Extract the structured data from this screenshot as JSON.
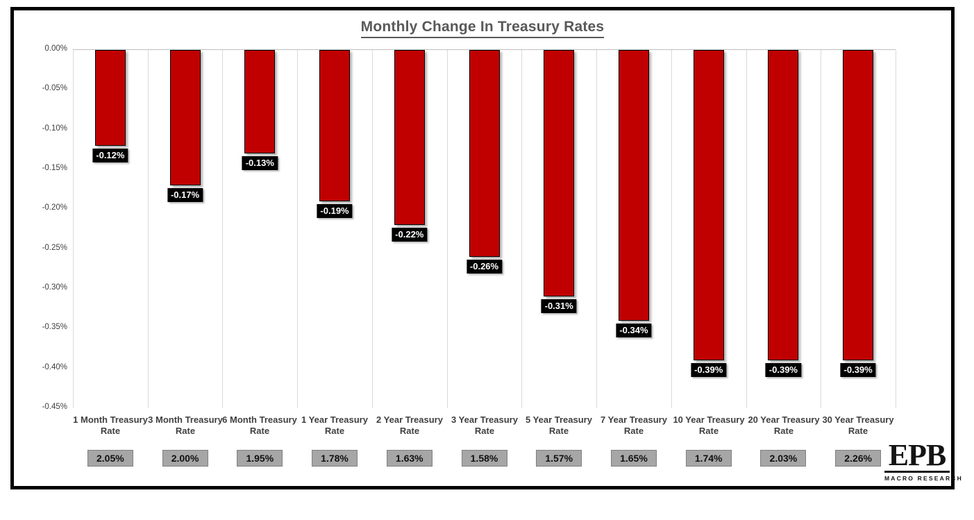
{
  "title": "Monthly Change In Treasury Rates",
  "logo": {
    "text": "EPB",
    "subtext": "MACRO RESEARCH"
  },
  "colors": {
    "bar": "#C00000",
    "bar_border": "#000000",
    "value_label_bg": "#000000",
    "value_label_text": "#FFFFFF",
    "rate_box_bg": "#A6A6A6",
    "rate_box_border": "#7F7F7F",
    "grid": "#D9D9D9",
    "axis_text": "#404040",
    "title_text": "#595959"
  },
  "chart_data": {
    "type": "bar",
    "title": "Monthly Change In Treasury Rates",
    "xlabel": "",
    "ylabel": "",
    "ylim": [
      -0.45,
      0
    ],
    "ytick_step": 0.05,
    "yticks": [
      "0.00%",
      "-0.05%",
      "-0.10%",
      "-0.15%",
      "-0.20%",
      "-0.25%",
      "-0.30%",
      "-0.35%",
      "-0.40%",
      "-0.45%"
    ],
    "grid": "vertical category separators, light gray",
    "legend": "none",
    "categories": [
      "1 Month Treasury Rate",
      "3 Month Treasury Rate",
      "6 Month Treasury Rate",
      "1 Year Treasury Rate",
      "2 Year Treasury Rate",
      "3 Year Treasury Rate",
      "5 Year Treasury Rate",
      "7 Year Treasury Rate",
      "10 Year Treasury Rate",
      "20 Year Treasury Rate",
      "30 Year Treasury Rate"
    ],
    "series": [
      {
        "name": "Monthly Change",
        "values": [
          -0.12,
          -0.17,
          -0.13,
          -0.19,
          -0.22,
          -0.26,
          -0.31,
          -0.34,
          -0.39,
          -0.39,
          -0.39
        ],
        "labels": [
          "-0.12%",
          "-0.17%",
          "-0.13%",
          "-0.19%",
          "-0.22%",
          "-0.26%",
          "-0.31%",
          "-0.34%",
          "-0.39%",
          "-0.39%",
          "-0.39%"
        ]
      }
    ],
    "current_rate_boxes": [
      "2.05%",
      "2.00%",
      "1.95%",
      "1.78%",
      "1.63%",
      "1.58%",
      "1.57%",
      "1.65%",
      "1.74%",
      "2.03%",
      "2.26%"
    ]
  }
}
